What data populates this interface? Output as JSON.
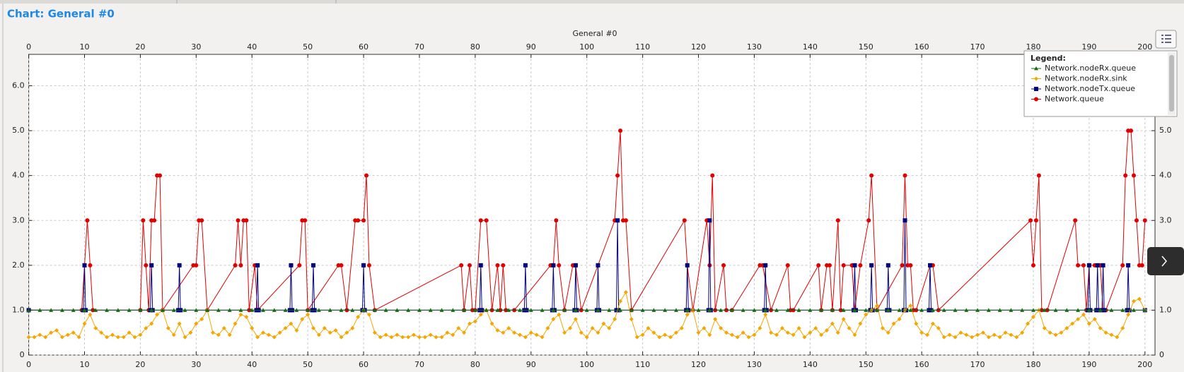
{
  "header": "Chart: General  #0",
  "chart_data": {
    "type": "line",
    "title": "General  #0",
    "legend_title": "Legend:",
    "legend_position": "upper right",
    "grid": true,
    "xlim": [
      0,
      201.8
    ],
    "xticks": [
      0,
      10,
      20,
      30,
      40,
      50,
      60,
      70,
      80,
      90,
      100,
      110,
      120,
      130,
      140,
      150,
      160,
      170,
      180,
      190,
      200
    ],
    "ylim": [
      0,
      6.7
    ],
    "yticks": [
      0,
      {
        "value": 1,
        "label": "1.0"
      },
      {
        "value": 2,
        "label": "2.0"
      },
      {
        "value": 3,
        "label": "3.0"
      },
      {
        "value": 4,
        "label": "4.0"
      },
      {
        "value": 5,
        "label": "5.0"
      },
      {
        "value": 6,
        "label": "6.0"
      }
    ],
    "series": [
      {
        "name": "Network.nodeRx.queue",
        "color": "#176a17",
        "marker": "triangle",
        "x": [
          0,
          2,
          4,
          6,
          8,
          10,
          12,
          14,
          16,
          18,
          20,
          22,
          24,
          26,
          28,
          30,
          32,
          34,
          36,
          38,
          40,
          42,
          44,
          46,
          48,
          50,
          52,
          54,
          56,
          58,
          60,
          62,
          64,
          66,
          68,
          70,
          72,
          74,
          76,
          78,
          80,
          82,
          84,
          86,
          88,
          90,
          92,
          94,
          96,
          98,
          100,
          102,
          104,
          106,
          108,
          110,
          112,
          114,
          116,
          118,
          120,
          122,
          124,
          126,
          128,
          130,
          132,
          134,
          136,
          138,
          140,
          142,
          144,
          146,
          148,
          150,
          152,
          154,
          156,
          158,
          160,
          162,
          164,
          166,
          168,
          170,
          172,
          174,
          176,
          178,
          180,
          182,
          184,
          186,
          188,
          190,
          192,
          194,
          196,
          198,
          200
        ],
        "values": [
          1,
          1,
          1,
          1,
          1,
          1,
          1,
          1,
          1,
          1,
          1,
          1,
          1,
          1,
          1,
          1,
          1,
          1,
          1,
          1,
          1,
          1,
          1,
          1,
          1,
          1,
          1,
          1,
          1,
          1,
          1,
          1,
          1,
          1,
          1,
          1,
          1,
          1,
          1,
          1,
          1,
          1,
          1,
          1,
          1,
          1,
          1,
          1,
          1,
          1,
          1,
          1,
          1,
          1,
          1,
          1,
          1,
          1,
          1,
          1,
          1,
          1,
          1,
          1,
          1,
          1,
          1,
          1,
          1,
          1,
          1,
          1,
          1,
          1,
          1,
          1,
          1,
          1,
          1,
          1,
          1,
          1,
          1,
          1,
          1,
          1,
          1,
          1,
          1,
          1,
          1,
          1,
          1,
          1,
          1,
          1,
          1,
          1,
          1,
          1,
          1
        ]
      },
      {
        "name": "Network.nodeRx.sink",
        "color": "#f5a600",
        "marker": "diamond",
        "x": [
          0,
          1,
          2,
          3,
          4,
          5,
          6,
          7,
          8,
          9,
          10,
          11,
          12,
          13,
          14,
          15,
          16,
          17,
          18,
          19,
          20,
          21,
          22,
          23,
          24,
          25,
          26,
          27,
          28,
          29,
          30,
          31,
          32,
          33,
          34,
          35,
          36,
          37,
          38,
          39,
          40,
          41,
          42,
          43,
          44,
          45,
          46,
          47,
          48,
          49,
          50,
          51,
          52,
          53,
          54,
          55,
          56,
          57,
          58,
          59,
          60,
          61,
          62,
          63,
          64,
          65,
          66,
          67,
          68,
          69,
          70,
          71,
          72,
          73,
          74,
          75,
          76,
          77,
          78,
          79,
          80,
          81,
          82,
          83,
          84,
          85,
          86,
          87,
          88,
          89,
          90,
          91,
          92,
          93,
          94,
          95,
          96,
          97,
          98,
          99,
          100,
          101,
          102,
          103,
          104,
          105,
          106,
          107,
          108,
          109,
          110,
          111,
          112,
          113,
          114,
          115,
          116,
          117,
          118,
          119,
          120,
          121,
          122,
          123,
          124,
          125,
          126,
          127,
          128,
          129,
          130,
          131,
          132,
          133,
          134,
          135,
          136,
          137,
          138,
          139,
          140,
          141,
          142,
          143,
          144,
          145,
          146,
          147,
          148,
          149,
          150,
          151,
          152,
          153,
          154,
          155,
          156,
          157,
          158,
          159,
          160,
          161,
          162,
          163,
          164,
          165,
          166,
          167,
          168,
          169,
          170,
          171,
          172,
          173,
          174,
          175,
          176,
          177,
          178,
          179,
          180,
          181,
          182,
          183,
          184,
          185,
          186,
          187,
          188,
          189,
          190,
          191,
          192,
          193,
          194,
          195,
          196,
          197,
          198,
          199,
          200
        ],
        "values": [
          0.4,
          0.4,
          0.45,
          0.4,
          0.5,
          0.55,
          0.4,
          0.45,
          0.5,
          0.4,
          0.7,
          0.9,
          0.6,
          0.5,
          0.4,
          0.45,
          0.4,
          0.4,
          0.5,
          0.4,
          0.45,
          0.6,
          0.7,
          0.9,
          1.0,
          0.6,
          0.45,
          0.7,
          0.4,
          0.5,
          0.7,
          0.8,
          1.0,
          0.5,
          0.45,
          0.6,
          0.45,
          0.7,
          0.9,
          0.85,
          0.6,
          0.4,
          0.5,
          0.45,
          0.4,
          0.5,
          0.6,
          0.7,
          0.55,
          0.8,
          0.9,
          0.6,
          0.45,
          0.6,
          0.5,
          0.55,
          0.4,
          0.5,
          0.6,
          0.85,
          1.0,
          0.9,
          0.5,
          0.4,
          0.45,
          0.4,
          0.45,
          0.4,
          0.4,
          0.45,
          0.4,
          0.4,
          0.45,
          0.4,
          0.4,
          0.5,
          0.45,
          0.6,
          0.5,
          0.7,
          0.75,
          0.9,
          1.0,
          0.7,
          0.55,
          0.5,
          0.6,
          0.5,
          0.45,
          0.4,
          0.5,
          0.45,
          0.4,
          0.6,
          0.8,
          0.9,
          0.5,
          0.6,
          0.8,
          0.5,
          0.4,
          0.6,
          0.5,
          0.7,
          0.6,
          0.8,
          1.2,
          1.4,
          0.8,
          0.4,
          0.45,
          0.6,
          0.5,
          0.4,
          0.45,
          0.4,
          0.5,
          0.6,
          0.9,
          1.0,
          0.5,
          0.6,
          0.45,
          0.8,
          0.6,
          0.5,
          0.45,
          0.4,
          0.5,
          0.4,
          0.45,
          0.6,
          0.9,
          0.5,
          0.45,
          0.6,
          0.5,
          0.45,
          0.6,
          0.4,
          0.5,
          0.6,
          0.45,
          0.55,
          0.7,
          0.5,
          0.8,
          0.6,
          0.45,
          0.7,
          0.9,
          1.0,
          1.1,
          0.6,
          0.5,
          0.7,
          0.8,
          1.0,
          1.1,
          0.7,
          0.5,
          0.45,
          0.7,
          0.6,
          0.4,
          0.45,
          0.4,
          0.5,
          0.45,
          0.4,
          0.45,
          0.5,
          0.4,
          0.45,
          0.4,
          0.5,
          0.45,
          0.4,
          0.5,
          0.7,
          0.85,
          1.0,
          0.6,
          0.5,
          0.45,
          0.5,
          0.6,
          0.7,
          0.8,
          0.9,
          0.7,
          0.8,
          0.6,
          0.5,
          0.45,
          0.4,
          0.6,
          0.9,
          1.2,
          1.25,
          1.0
        ]
      },
      {
        "name": "Network.nodeTx.queue",
        "color": "#00007f",
        "marker": "square",
        "x": [
          0,
          9.8,
          10,
          10.2,
          21.8,
          22,
          22.2,
          26.8,
          27,
          27.2,
          40.8,
          41,
          41.2,
          46.8,
          47,
          47.2,
          50.8,
          51,
          51.2,
          59.8,
          60,
          60.2,
          80.8,
          81,
          81.2,
          88.8,
          89,
          89.2,
          93.8,
          94,
          94.2,
          97.8,
          98,
          98.2,
          101.8,
          102,
          102.2,
          105.3,
          105.5,
          105.7,
          117.8,
          118,
          118.2,
          121.8,
          122,
          122.2,
          131.8,
          132,
          132.2,
          147.8,
          148,
          148.2,
          150.8,
          151,
          151.2,
          153.8,
          154,
          154.2,
          156.8,
          157,
          157.2,
          161.3,
          161.5,
          161.7,
          189.8,
          190,
          190.2,
          191.3,
          191.5,
          191.7,
          192.3,
          192.5,
          192.7,
          196.8,
          197,
          197.2,
          200
        ],
        "values": [
          1,
          1,
          2,
          1,
          1,
          2,
          1,
          1,
          2,
          1,
          1,
          2,
          1,
          1,
          2,
          1,
          1,
          2,
          1,
          1,
          2,
          1,
          1,
          2,
          1,
          1,
          2,
          1,
          1,
          2,
          1,
          1,
          2,
          1,
          1,
          2,
          1,
          1,
          3,
          1,
          1,
          2,
          1,
          1,
          3,
          1,
          1,
          2,
          1,
          1,
          2,
          1,
          1,
          2,
          1,
          1,
          2,
          1,
          1,
          3,
          1,
          1,
          2,
          1,
          1,
          2,
          1,
          1,
          2,
          1,
          1,
          2,
          1,
          1,
          2,
          1,
          1
        ]
      },
      {
        "name": "Network.queue",
        "color": "#e00000",
        "marker": "circle",
        "x": [
          0,
          9.5,
          10,
          10.5,
          11,
          11.5,
          20,
          20.5,
          21,
          21.5,
          22,
          22.5,
          23,
          23.5,
          24,
          29.5,
          30,
          30.5,
          31,
          32,
          37,
          37.5,
          38,
          38.5,
          39,
          39.5,
          40.5,
          41,
          48.5,
          49,
          49.5,
          50,
          55.5,
          56,
          57,
          58.5,
          59,
          60,
          60.5,
          61,
          62,
          77.5,
          78,
          79,
          79.5,
          80,
          81,
          82,
          83,
          84,
          84.5,
          85,
          85.5,
          87,
          93.5,
          94,
          94.5,
          95,
          96,
          97.5,
          98,
          99,
          105,
          105.5,
          106,
          106.5,
          107,
          108,
          117.5,
          118,
          119,
          121.5,
          122,
          122.5,
          123,
          124.5,
          125,
          126,
          131,
          131.5,
          133,
          136,
          136.5,
          137,
          141.5,
          142,
          143,
          143.5,
          144,
          145,
          145.5,
          146,
          147.5,
          148,
          149,
          150.5,
          151,
          152,
          156.5,
          157,
          157.5,
          158,
          158.5,
          159,
          161.5,
          162,
          163,
          179.5,
          180,
          180.5,
          181,
          181.5,
          182.5,
          187.5,
          188,
          189,
          189.5,
          190,
          191,
          192,
          192.5,
          193,
          196,
          196.5,
          197,
          197.5,
          198,
          198.5,
          199,
          199.5,
          200
        ],
        "values": [
          1,
          1,
          2,
          3,
          2,
          1,
          1,
          3,
          2,
          1,
          3,
          3,
          4,
          4,
          1,
          2,
          2,
          3,
          3,
          1,
          2,
          3,
          2,
          3,
          3,
          1,
          2,
          1,
          2,
          3,
          3,
          1,
          2,
          2,
          1,
          3,
          3,
          3,
          4,
          2,
          1,
          2,
          1,
          2,
          1,
          1,
          3,
          3,
          1,
          2,
          1,
          2,
          1,
          1,
          2,
          2,
          3,
          2,
          1,
          2,
          2,
          1,
          3,
          4,
          5,
          3,
          3,
          1,
          3,
          2,
          1,
          3,
          2,
          4,
          1,
          2,
          1,
          1,
          2,
          2,
          1,
          2,
          1,
          1,
          2,
          1,
          2,
          2,
          1,
          3,
          1,
          2,
          2,
          1,
          2,
          3,
          4,
          1,
          2,
          4,
          2,
          2,
          1,
          1,
          2,
          2,
          1,
          3,
          2,
          3,
          4,
          1,
          1,
          3,
          2,
          2,
          1,
          2,
          2,
          2,
          1,
          1,
          2,
          4,
          5,
          5,
          4,
          3,
          2,
          2,
          3
        ]
      }
    ]
  }
}
